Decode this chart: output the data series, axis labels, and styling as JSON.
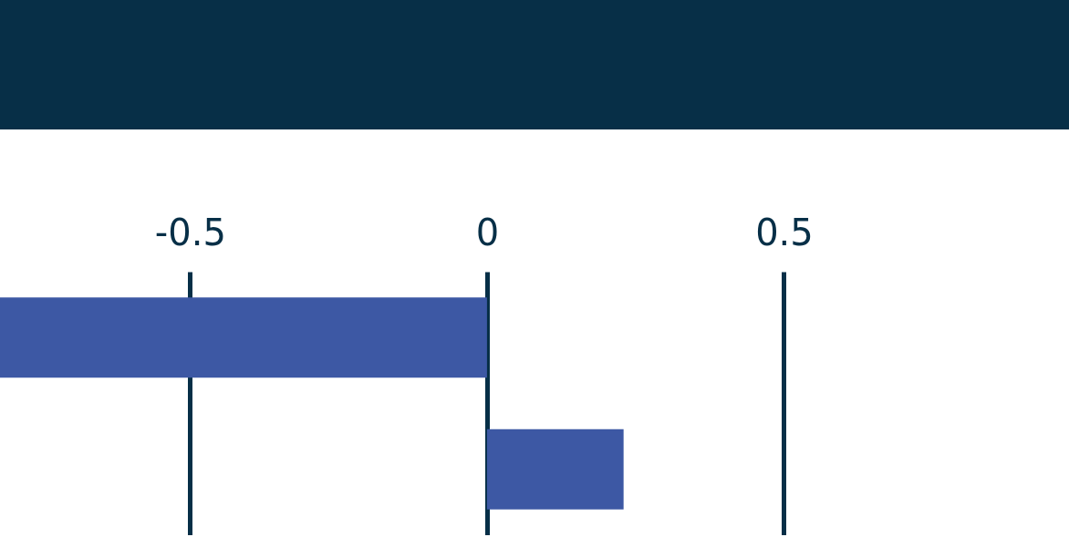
{
  "chart_data": {
    "type": "bar",
    "orientation": "horizontal",
    "categories": [
      null,
      null
    ],
    "values": [
      -0.82,
      0.23
    ],
    "color": "#3d58a4",
    "xlim": [
      -0.82,
      0.98
    ],
    "xticks": [
      -0.5,
      0,
      0.5
    ],
    "grid": "x"
  }
}
